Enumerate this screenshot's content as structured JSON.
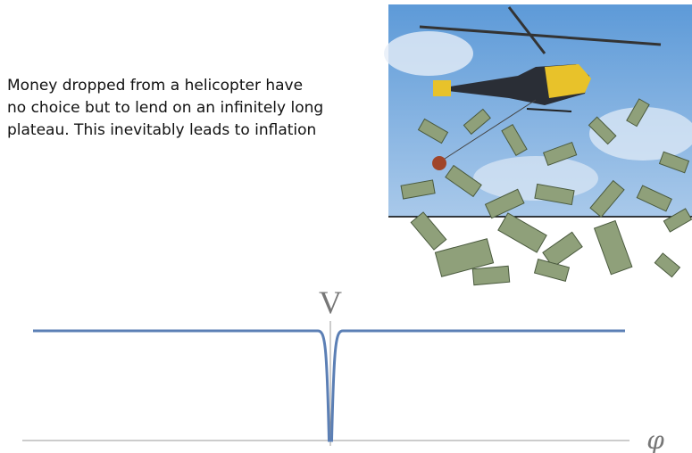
{
  "text": {
    "lines": [
      "Money dropped from a helicopter have",
      "no choice but to lend on an infinitely long",
      "plateau. This inevitably leads to inflation"
    ]
  },
  "plot": {
    "y_label": "V",
    "x_label": "φ"
  }
}
